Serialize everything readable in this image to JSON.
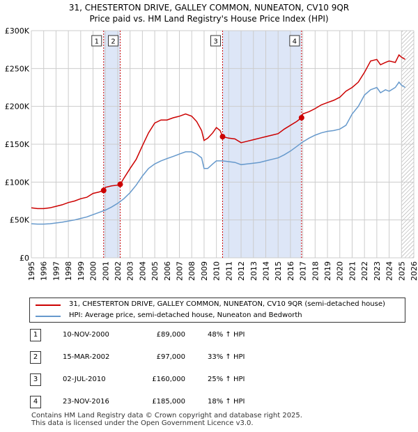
{
  "title": {
    "line1": "31, CHESTERTON DRIVE, GALLEY COMMON, NUNEATON, CV10 9QR",
    "line2": "Price paid vs. HM Land Registry's House Price Index (HPI)"
  },
  "colors": {
    "red": "#cc0000",
    "blue": "#6699cc",
    "shade": "#dde6f7",
    "grid": "#cccccc",
    "marker_line": "#cc0000"
  },
  "chart_data": {
    "type": "line",
    "title": "Price paid vs. HM Land Registry's House Price Index (HPI)",
    "xlabel": "",
    "ylabel": "",
    "xlim": [
      1995,
      2026
    ],
    "ylim": [
      0,
      300000
    ],
    "x_ticks": [
      1995,
      1996,
      1997,
      1998,
      1999,
      2000,
      2001,
      2002,
      2003,
      2004,
      2005,
      2006,
      2007,
      2008,
      2009,
      2010,
      2011,
      2012,
      2013,
      2014,
      2015,
      2016,
      2017,
      2018,
      2019,
      2020,
      2021,
      2022,
      2023,
      2024,
      2025,
      2026
    ],
    "x_tick_labels": [
      "1995",
      "1996",
      "1997",
      "1998",
      "1999",
      "2000",
      "2001",
      "2002",
      "2003",
      "2004",
      "2005",
      "2006",
      "2007",
      "2008",
      "2009",
      "2010",
      "2011",
      "2012",
      "2013",
      "2014",
      "2015",
      "2016",
      "2017",
      "2018",
      "2019",
      "2020",
      "2021",
      "2022",
      "2023",
      "2024",
      "2025",
      "2026"
    ],
    "y_ticks": [
      0,
      50000,
      100000,
      150000,
      200000,
      250000,
      300000
    ],
    "y_tick_labels": [
      "£0",
      "£50K",
      "£100K",
      "£150K",
      "£200K",
      "£250K",
      "£300K"
    ],
    "grid": true,
    "shaded_ranges": [
      [
        2000.86,
        2002.2
      ],
      [
        2010.5,
        2016.9
      ]
    ],
    "hatched_from": 2025.0,
    "series": [
      {
        "name": "31, CHESTERTON DRIVE, GALLEY COMMON, NUNEATON, CV10 9QR (semi-detached house)",
        "color": "#cc0000",
        "x": [
          1995,
          1995.5,
          1996,
          1996.5,
          1997,
          1997.5,
          1998,
          1998.5,
          1999,
          1999.5,
          2000,
          2000.5,
          2000.86,
          2001,
          2001.5,
          2002,
          2002.2,
          2002.5,
          2003,
          2003.5,
          2004,
          2004.5,
          2005,
          2005.5,
          2006,
          2006.5,
          2007,
          2007.5,
          2008,
          2008.4,
          2008.8,
          2009,
          2009.3,
          2009.7,
          2010,
          2010.3,
          2010.5,
          2011,
          2011.5,
          2012,
          2012.5,
          2013,
          2013.5,
          2014,
          2014.5,
          2015,
          2015.5,
          2016,
          2016.5,
          2016.9,
          2017,
          2017.5,
          2018,
          2018.5,
          2019,
          2019.5,
          2020,
          2020.5,
          2021,
          2021.5,
          2022,
          2022.5,
          2023,
          2023.3,
          2023.7,
          2024,
          2024.5,
          2024.8,
          2025,
          2025.3
        ],
        "values": [
          66000,
          65000,
          65000,
          66000,
          68000,
          70000,
          73000,
          75000,
          78000,
          80000,
          85000,
          87000,
          89000,
          93000,
          95000,
          96000,
          97000,
          105000,
          118000,
          130000,
          148000,
          165000,
          178000,
          182000,
          182000,
          185000,
          187000,
          190000,
          187000,
          180000,
          168000,
          155000,
          158000,
          165000,
          172000,
          168000,
          160000,
          158000,
          157000,
          152000,
          154000,
          156000,
          158000,
          160000,
          162000,
          164000,
          170000,
          175000,
          180000,
          185000,
          190000,
          193000,
          197000,
          202000,
          205000,
          208000,
          212000,
          220000,
          225000,
          232000,
          245000,
          260000,
          262000,
          255000,
          258000,
          260000,
          258000,
          268000,
          265000,
          262000
        ]
      },
      {
        "name": "HPI: Average price, semi-detached house, Nuneaton and Bedworth",
        "color": "#6699cc",
        "x": [
          1995,
          1995.5,
          1996,
          1996.5,
          1997,
          1997.5,
          1998,
          1998.5,
          1999,
          1999.5,
          2000,
          2000.5,
          2001,
          2001.5,
          2002,
          2002.5,
          2003,
          2003.5,
          2004,
          2004.5,
          2005,
          2005.5,
          2006,
          2006.5,
          2007,
          2007.5,
          2008,
          2008.4,
          2008.8,
          2009,
          2009.3,
          2009.7,
          2010,
          2010.5,
          2011,
          2011.5,
          2012,
          2012.5,
          2013,
          2013.5,
          2014,
          2014.5,
          2015,
          2015.5,
          2016,
          2016.5,
          2017,
          2017.5,
          2018,
          2018.5,
          2019,
          2019.5,
          2020,
          2020.5,
          2021,
          2021.5,
          2022,
          2022.5,
          2023,
          2023.3,
          2023.7,
          2024,
          2024.5,
          2024.8,
          2025,
          2025.3
        ],
        "values": [
          45000,
          44500,
          44500,
          45000,
          46000,
          47000,
          48500,
          50000,
          52000,
          54000,
          57000,
          60000,
          63000,
          67000,
          72000,
          78000,
          86000,
          96000,
          108000,
          118000,
          124000,
          128000,
          131000,
          134000,
          137000,
          140000,
          140000,
          137000,
          132000,
          118000,
          118000,
          124000,
          128000,
          128000,
          127000,
          126000,
          123000,
          124000,
          125000,
          126000,
          128000,
          130000,
          132000,
          136000,
          141000,
          147000,
          153000,
          158000,
          162000,
          165000,
          167000,
          168000,
          170000,
          175000,
          190000,
          200000,
          215000,
          222000,
          225000,
          218000,
          222000,
          220000,
          225000,
          232000,
          228000,
          225000
        ]
      }
    ],
    "transactions": [
      {
        "label": "1",
        "x": 2000.86,
        "value": 89000
      },
      {
        "label": "2",
        "x": 2002.2,
        "value": 97000
      },
      {
        "label": "3",
        "x": 2010.5,
        "value": 160000
      },
      {
        "label": "4",
        "x": 2016.9,
        "value": 185000
      }
    ]
  },
  "legend": {
    "items": [
      {
        "label": "31, CHESTERTON DRIVE, GALLEY COMMON, NUNEATON, CV10 9QR (semi-detached house)",
        "color": "#cc0000"
      },
      {
        "label": "HPI: Average price, semi-detached house, Nuneaton and Bedworth",
        "color": "#6699cc"
      }
    ]
  },
  "transactions_table": [
    {
      "num": "1",
      "date": "10-NOV-2000",
      "price": "£89,000",
      "hpi": "48% ↑ HPI"
    },
    {
      "num": "2",
      "date": "15-MAR-2002",
      "price": "£97,000",
      "hpi": "33% ↑ HPI"
    },
    {
      "num": "3",
      "date": "02-JUL-2010",
      "price": "£160,000",
      "hpi": "25% ↑ HPI"
    },
    {
      "num": "4",
      "date": "23-NOV-2016",
      "price": "£185,000",
      "hpi": "18% ↑ HPI"
    }
  ],
  "footer": {
    "line1": "Contains HM Land Registry data © Crown copyright and database right 2025.",
    "line2": "This data is licensed under the Open Government Licence v3.0."
  }
}
